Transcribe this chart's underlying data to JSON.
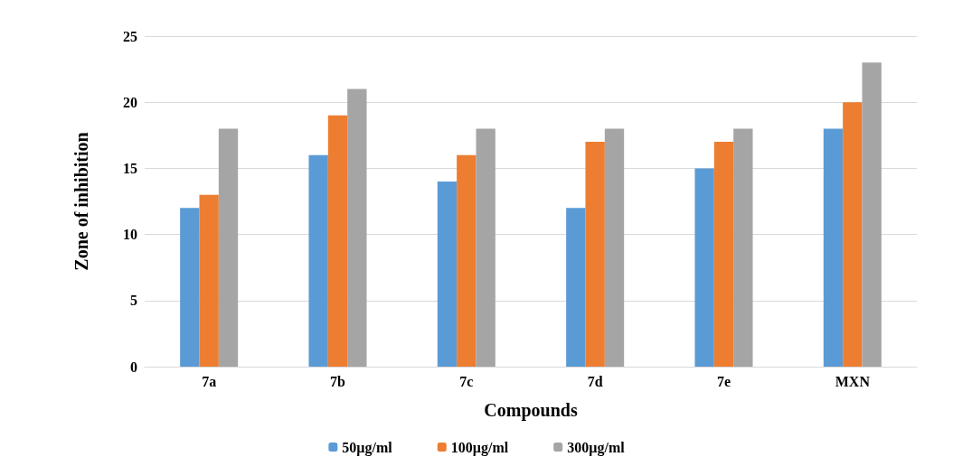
{
  "chart_data": {
    "type": "bar",
    "xlabel": "Compounds",
    "ylabel": "Zone of inhibition",
    "categories": [
      "7a",
      "7b",
      "7c",
      "7d",
      "7e",
      "MXN"
    ],
    "series": [
      {
        "name": "50µg/ml",
        "color": "#5b9bd5",
        "values": [
          12,
          16,
          14,
          12,
          15,
          18
        ]
      },
      {
        "name": "100µg/ml",
        "color": "#ed7d31",
        "values": [
          13,
          19,
          16,
          17,
          17,
          20
        ]
      },
      {
        "name": "300µg/ml",
        "color": "#a5a5a5",
        "values": [
          18,
          21,
          18,
          18,
          18,
          23
        ]
      }
    ],
    "ylim": [
      0,
      25
    ],
    "yticks": [
      0,
      5,
      10,
      15,
      20,
      25
    ],
    "grid": "y",
    "legend": "bottom"
  }
}
